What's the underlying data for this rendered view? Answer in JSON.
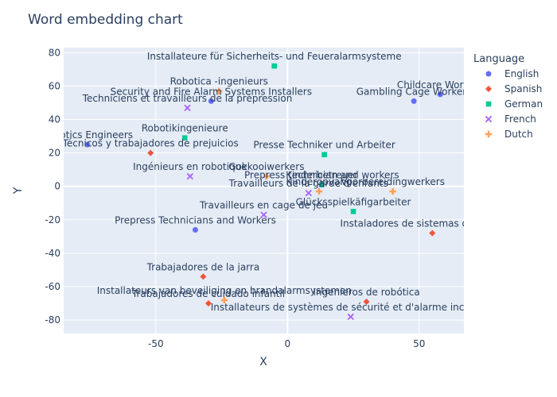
{
  "chart_data": {
    "type": "scatter",
    "title": "Word embedding chart",
    "xlabel": "X",
    "ylabel": "Y",
    "xlim": [
      -85,
      67
    ],
    "ylim": [
      -88,
      83
    ],
    "x_ticks": [
      -50,
      0,
      50
    ],
    "y_ticks": [
      -80,
      -60,
      -40,
      -20,
      0,
      20,
      40,
      60,
      80
    ],
    "grid": true,
    "legend_title": "Language",
    "legend_position": "right",
    "series": [
      {
        "name": "English",
        "color": "#636efa",
        "marker": "circle",
        "points": [
          {
            "x": -76,
            "y": 25,
            "label": "Robotics Engineers"
          },
          {
            "x": -29,
            "y": 51,
            "label": "Security and Fire Alarm Systems Installers"
          },
          {
            "x": 48,
            "y": 51,
            "label": "Gambling Cage Workers"
          },
          {
            "x": 58,
            "y": 55,
            "label": "Childcare Workers"
          },
          {
            "x": 13,
            "y": 1,
            "label": "Prepress technician and workers"
          },
          {
            "x": -35,
            "y": -26,
            "label": "Prepress Technicians and Workers"
          }
        ]
      },
      {
        "name": "Spanish",
        "color": "#ef553b",
        "marker": "diamond",
        "points": [
          {
            "x": -52,
            "y": 20,
            "label": "Técnicos y trabajadores de prejuicios"
          },
          {
            "x": 55,
            "y": -28,
            "label": "Instaladores de sistemas de seguridad"
          },
          {
            "x": -32,
            "y": -54,
            "label": "Trabajadores de la jarra"
          },
          {
            "x": -30,
            "y": -70,
            "label": "Trabajadores de cuidado infantil"
          },
          {
            "x": 30,
            "y": -69,
            "label": "Ingenieros de robótica"
          }
        ]
      },
      {
        "name": "German",
        "color": "#00cc96",
        "marker": "square",
        "points": [
          {
            "x": -5,
            "y": 72,
            "label": "Installateure für Sicherheits- und Feueralarmsysteme"
          },
          {
            "x": -39,
            "y": 29,
            "label": "Robotikingenieure"
          },
          {
            "x": 14,
            "y": 19,
            "label": "Presse Techniker und Arbeiter"
          },
          {
            "x": 25,
            "y": -15,
            "label": "Glücksspielkäfigarbeiter"
          },
          {
            "x": 13,
            "y": 1,
            "label": "Kinderbetreuer"
          }
        ]
      },
      {
        "name": "French",
        "color": "#ab63fa",
        "marker": "x",
        "points": [
          {
            "x": -38,
            "y": 47,
            "label": "Techniciens et travailleurs de la prépression"
          },
          {
            "x": -37,
            "y": 6,
            "label": "Ingénieurs en robotique"
          },
          {
            "x": 8,
            "y": -4,
            "label": "Travailleurs de la garde d'enfants"
          },
          {
            "x": -9,
            "y": -17,
            "label": "Travailleurs en cage de jeu"
          },
          {
            "x": 24,
            "y": -78,
            "label": "Installateurs de systèmes de sécurité et d'alarme incendie"
          }
        ]
      },
      {
        "name": "Dutch",
        "color": "#ffa15a",
        "marker": "cross",
        "points": [
          {
            "x": -26,
            "y": 57,
            "label": "Robotica -ingenieurs"
          },
          {
            "x": -8,
            "y": 6,
            "label": "Gokkooiwerkers"
          },
          {
            "x": 12,
            "y": -3,
            "label": "Kinderopvang"
          },
          {
            "x": 40,
            "y": -3,
            "label": "Voorbereidingwerkers"
          },
          {
            "x": -24,
            "y": -68,
            "label": "Installateurs van beveiliging en brandalarmsystemen"
          }
        ]
      }
    ]
  }
}
